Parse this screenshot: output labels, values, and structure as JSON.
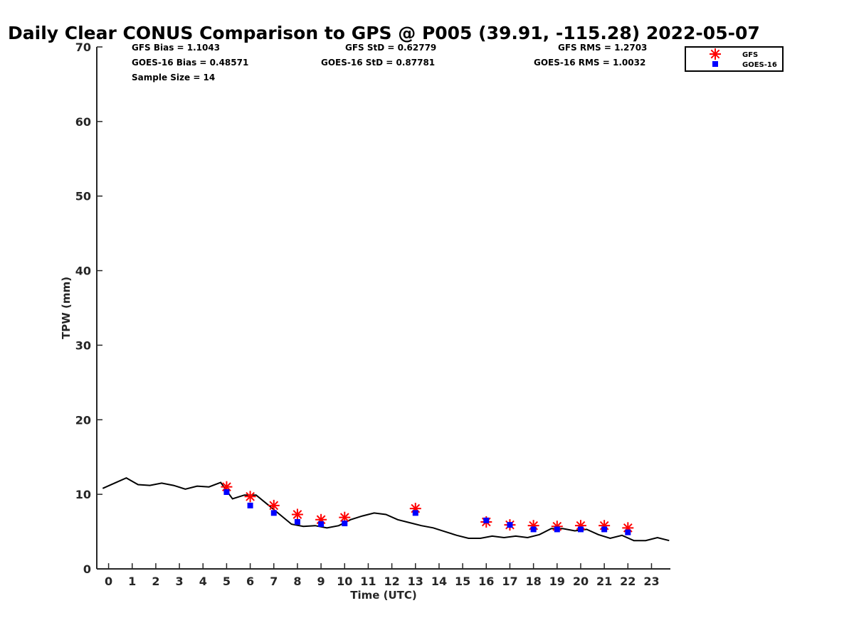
{
  "chart_data": {
    "type": "scatter",
    "title": "Daily Clear CONUS Comparison to GPS @ P005 (39.91, -115.28) 2022-05-07",
    "xlabel": "Time (UTC)",
    "ylabel": "TPW (mm)",
    "xlim": [
      -0.5,
      23.8
    ],
    "ylim": [
      0,
      70
    ],
    "x_ticks": [
      0,
      1,
      2,
      3,
      4,
      5,
      6,
      7,
      8,
      9,
      10,
      11,
      12,
      13,
      14,
      15,
      16,
      17,
      18,
      19,
      20,
      21,
      22,
      23
    ],
    "y_ticks": [
      0,
      10,
      20,
      30,
      40,
      50,
      60,
      70
    ],
    "grid": false,
    "legend_position": "top-right",
    "stats": {
      "gfs_bias": "GFS Bias = 1.1043",
      "goes_bias": "GOES-16 Bias = 0.48571",
      "sample_size": "Sample Size = 14",
      "gfs_std": "GFS StD = 0.62779",
      "goes_std": "GOES-16 StD = 0.87781",
      "gfs_rms": "GFS RMS = 1.2703",
      "goes_rms": "GOES-16 RMS = 1.0032"
    },
    "gps_line": {
      "color": "#000000",
      "x": [
        -0.25,
        0.25,
        0.75,
        1.25,
        1.75,
        2.25,
        2.75,
        3.25,
        3.75,
        4.25,
        4.75,
        5.0,
        5.25,
        5.75,
        6.25,
        6.75,
        7.25,
        7.75,
        8.25,
        8.75,
        9.25,
        9.75,
        10.25,
        10.75,
        11.25,
        11.75,
        12.25,
        12.75,
        13.25,
        13.75,
        14.25,
        14.75,
        15.25,
        15.75,
        16.25,
        16.75,
        17.25,
        17.75,
        18.25,
        18.75,
        19.25,
        19.75,
        20.25,
        20.75,
        21.25,
        21.75,
        22.25,
        22.75,
        23.25,
        23.75
      ],
      "y": [
        10.8,
        11.5,
        12.2,
        11.3,
        11.2,
        11.5,
        11.2,
        10.7,
        11.1,
        11.0,
        11.6,
        10.5,
        9.4,
        9.9,
        9.9,
        8.6,
        7.3,
        6.0,
        5.7,
        5.8,
        5.5,
        5.8,
        6.6,
        7.1,
        7.5,
        7.3,
        6.6,
        6.2,
        5.8,
        5.5,
        5.0,
        4.5,
        4.1,
        4.1,
        4.4,
        4.2,
        4.4,
        4.2,
        4.6,
        5.4,
        5.4,
        5.1,
        5.3,
        4.6,
        4.1,
        4.5,
        3.8,
        3.8,
        4.2,
        3.8
      ]
    },
    "series": [
      {
        "name": "GFS",
        "color": "#ff0000",
        "marker": "star",
        "x": [
          5,
          6,
          7,
          8,
          9,
          10,
          13,
          16,
          17,
          18,
          19,
          20,
          21,
          22
        ],
        "y": [
          11.0,
          9.7,
          8.5,
          7.3,
          6.6,
          6.9,
          8.1,
          6.3,
          5.9,
          5.8,
          5.7,
          5.8,
          5.8,
          5.5
        ]
      },
      {
        "name": "GOES-16",
        "color": "#0000ff",
        "marker": "square",
        "x": [
          5,
          6,
          7,
          8,
          9,
          10,
          13,
          16,
          17,
          18,
          19,
          20,
          21,
          22
        ],
        "y": [
          10.3,
          8.5,
          7.5,
          6.3,
          6.0,
          6.1,
          7.5,
          6.5,
          5.9,
          5.3,
          5.3,
          5.3,
          5.3,
          4.9
        ]
      }
    ]
  }
}
